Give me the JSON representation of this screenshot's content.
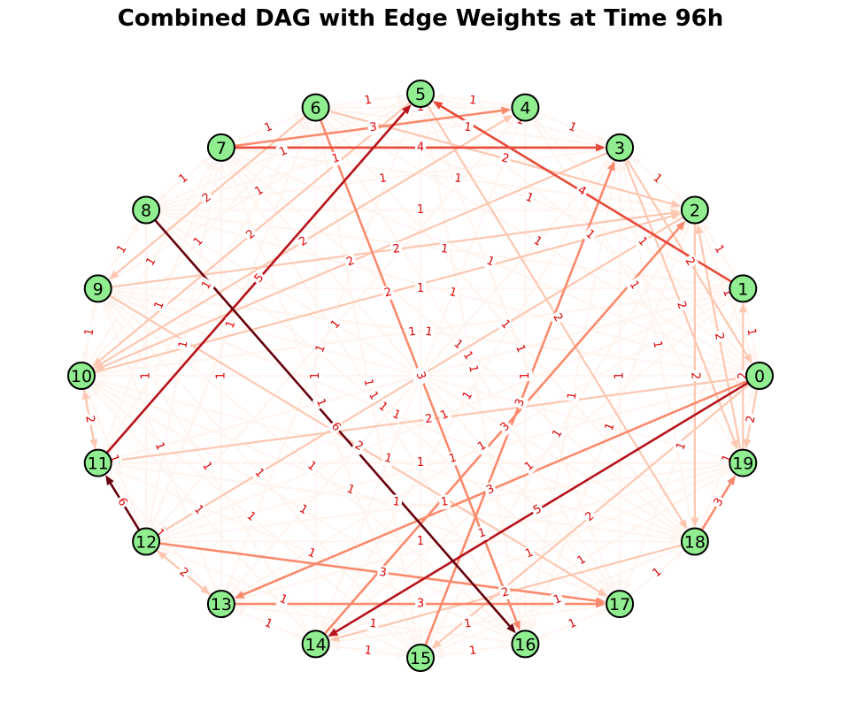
{
  "title": "Combined DAG with Edge Weights at Time 96h",
  "colors": {
    "node_fill": "#90ee90",
    "node_stroke": "#000000",
    "edge_label": "#e00000",
    "edge_colormap": [
      "#fff5f0",
      "#fcbba1",
      "#fb6a4a",
      "#cb181d",
      "#67000d"
    ]
  },
  "nodes": [
    "0",
    "1",
    "2",
    "3",
    "4",
    "5",
    "6",
    "7",
    "8",
    "9",
    "10",
    "11",
    "12",
    "13",
    "14",
    "15",
    "16",
    "17",
    "18",
    "19"
  ],
  "edges": [
    {
      "source": "7",
      "target": "3",
      "weight": 4
    },
    {
      "source": "4",
      "target": "3",
      "weight": 1
    },
    {
      "source": "3",
      "target": "2",
      "weight": 1
    },
    {
      "source": "1",
      "target": "5",
      "weight": 4
    },
    {
      "source": "11",
      "target": "5",
      "weight": 5
    },
    {
      "source": "8",
      "target": "16",
      "weight": 6
    },
    {
      "source": "12",
      "target": "11",
      "weight": 6
    },
    {
      "source": "0",
      "target": "14",
      "weight": 5
    },
    {
      "source": "18",
      "target": "19",
      "weight": 3
    },
    {
      "source": "18",
      "target": "0",
      "weight": 1
    },
    {
      "source": "0",
      "target": "13",
      "weight": 3
    },
    {
      "source": "13",
      "target": "17",
      "weight": 3
    },
    {
      "source": "12",
      "target": "17",
      "weight": 3
    },
    {
      "source": "13",
      "target": "12",
      "weight": 2
    },
    {
      "source": "15",
      "target": "3",
      "weight": 3
    },
    {
      "source": "14",
      "target": "2",
      "weight": 3
    },
    {
      "source": "6",
      "target": "16",
      "weight": 3
    },
    {
      "source": "5",
      "target": "16",
      "weight": 1
    },
    {
      "source": "5",
      "target": "18",
      "weight": 2
    },
    {
      "source": "7",
      "target": "4",
      "weight": 3
    },
    {
      "source": "6",
      "target": "5",
      "weight": 1
    },
    {
      "source": "9",
      "target": "2",
      "weight": 2
    },
    {
      "source": "10",
      "target": "2",
      "weight": 2
    },
    {
      "source": "10",
      "target": "4",
      "weight": 2
    },
    {
      "source": "11",
      "target": "0",
      "weight": 2
    },
    {
      "source": "13",
      "target": "3",
      "weight": 1
    },
    {
      "source": "9",
      "target": "17",
      "weight": 2
    },
    {
      "source": "10",
      "target": "0",
      "weight": 1
    },
    {
      "source": "8",
      "target": "5",
      "weight": 1
    },
    {
      "source": "7",
      "target": "15",
      "weight": 1
    },
    {
      "source": "12",
      "target": "1",
      "weight": 1
    },
    {
      "source": "11",
      "target": "19",
      "weight": 1
    },
    {
      "source": "9",
      "target": "19",
      "weight": 1
    },
    {
      "source": "10",
      "target": "1",
      "weight": 1
    },
    {
      "source": "14",
      "target": "3",
      "weight": 1
    },
    {
      "source": "15",
      "target": "2",
      "weight": 1
    },
    {
      "source": "16",
      "target": "3",
      "weight": 1
    },
    {
      "source": "17",
      "target": "3",
      "weight": 1
    },
    {
      "source": "17",
      "target": "5",
      "weight": 1
    },
    {
      "source": "15",
      "target": "6",
      "weight": 1
    },
    {
      "source": "14",
      "target": "6",
      "weight": 1
    },
    {
      "source": "13",
      "target": "7",
      "weight": 1
    },
    {
      "source": "12",
      "target": "4",
      "weight": 1
    },
    {
      "source": "19",
      "target": "2",
      "weight": 2
    },
    {
      "source": "19",
      "target": "1",
      "weight": 2
    },
    {
      "source": "19",
      "target": "4",
      "weight": 1
    },
    {
      "source": "18",
      "target": "3",
      "weight": 1
    },
    {
      "source": "18",
      "target": "9",
      "weight": 1
    },
    {
      "source": "18",
      "target": "7",
      "weight": 1
    },
    {
      "source": "17",
      "target": "10",
      "weight": 1
    },
    {
      "source": "17",
      "target": "9",
      "weight": 1
    },
    {
      "source": "16",
      "target": "9",
      "weight": 1
    },
    {
      "source": "16",
      "target": "10",
      "weight": 1
    },
    {
      "source": "15",
      "target": "10",
      "weight": 1
    },
    {
      "source": "14",
      "target": "10",
      "weight": 1
    },
    {
      "source": "13",
      "target": "9",
      "weight": 1
    },
    {
      "source": "12",
      "target": "6",
      "weight": 1
    },
    {
      "source": "11",
      "target": "6",
      "weight": 1
    },
    {
      "source": "11",
      "target": "7",
      "weight": 1
    },
    {
      "source": "10",
      "target": "6",
      "weight": 1
    },
    {
      "source": "10",
      "target": "7",
      "weight": 1
    },
    {
      "source": "9",
      "target": "5",
      "weight": 1
    },
    {
      "source": "9",
      "target": "6",
      "weight": 1
    },
    {
      "source": "8",
      "target": "3",
      "weight": 1
    },
    {
      "source": "8",
      "target": "4",
      "weight": 1
    },
    {
      "source": "7",
      "target": "6",
      "weight": 1
    },
    {
      "source": "6",
      "target": "2",
      "weight": 2
    },
    {
      "source": "6",
      "target": "1",
      "weight": 1
    },
    {
      "source": "5",
      "target": "1",
      "weight": 1
    },
    {
      "source": "4",
      "target": "0",
      "weight": 1
    },
    {
      "source": "3",
      "target": "0",
      "weight": 2
    },
    {
      "source": "3",
      "target": "19",
      "weight": 2
    },
    {
      "source": "2",
      "target": "0",
      "weight": 1
    },
    {
      "source": "2",
      "target": "18",
      "weight": 2
    },
    {
      "source": "1",
      "target": "0",
      "weight": 1
    },
    {
      "source": "1",
      "target": "17",
      "weight": 1
    },
    {
      "source": "0",
      "target": "15",
      "weight": 2
    },
    {
      "source": "0",
      "target": "12",
      "weight": 1
    },
    {
      "source": "19",
      "target": "15",
      "weight": 1
    },
    {
      "source": "19",
      "target": "13",
      "weight": 1
    },
    {
      "source": "18",
      "target": "14",
      "weight": 2
    },
    {
      "source": "17",
      "target": "16",
      "weight": 1
    },
    {
      "source": "16",
      "target": "15",
      "weight": 1
    },
    {
      "source": "15",
      "target": "14",
      "weight": 1
    },
    {
      "source": "14",
      "target": "13",
      "weight": 1
    },
    {
      "source": "13",
      "target": "11",
      "weight": 1
    },
    {
      "source": "12",
      "target": "10",
      "weight": 1
    },
    {
      "source": "11",
      "target": "10",
      "weight": 2
    },
    {
      "source": "10",
      "target": "9",
      "weight": 1
    },
    {
      "source": "9",
      "target": "8",
      "weight": 1
    },
    {
      "source": "8",
      "target": "7",
      "weight": 1
    },
    {
      "source": "1",
      "target": "2",
      "weight": 1
    },
    {
      "source": "2",
      "target": "3",
      "weight": 1
    },
    {
      "source": "4",
      "target": "5",
      "weight": 1
    },
    {
      "source": "16",
      "target": "17",
      "weight": 1
    },
    {
      "source": "14",
      "target": "15",
      "weight": 1
    },
    {
      "source": "12",
      "target": "13",
      "weight": 2
    },
    {
      "source": "10",
      "target": "11",
      "weight": 2
    },
    {
      "source": "0",
      "target": "19",
      "weight": 2
    },
    {
      "source": "9",
      "target": "10",
      "weight": 1
    },
    {
      "source": "7",
      "target": "8",
      "weight": 1
    },
    {
      "source": "11",
      "target": "12",
      "weight": 1
    },
    {
      "source": "13",
      "target": "14",
      "weight": 1
    },
    {
      "source": "15",
      "target": "16",
      "weight": 1
    },
    {
      "source": "17",
      "target": "18",
      "weight": 1
    },
    {
      "source": "2",
      "target": "16",
      "weight": 1
    },
    {
      "source": "3",
      "target": "17",
      "weight": 1
    },
    {
      "source": "4",
      "target": "14",
      "weight": 1
    },
    {
      "source": "5",
      "target": "15",
      "weight": 1
    },
    {
      "source": "6",
      "target": "17",
      "weight": 1
    },
    {
      "source": "7",
      "target": "16",
      "weight": 1
    },
    {
      "source": "8",
      "target": "18",
      "weight": 1
    },
    {
      "source": "1",
      "target": "11",
      "weight": 1
    },
    {
      "source": "0",
      "target": "9",
      "weight": 1
    },
    {
      "source": "2",
      "target": "12",
      "weight": 2
    },
    {
      "source": "3",
      "target": "13",
      "weight": 1
    },
    {
      "source": "4",
      "target": "12",
      "weight": 1
    },
    {
      "source": "5",
      "target": "13",
      "weight": 1
    },
    {
      "source": "1",
      "target": "13",
      "weight": 1
    },
    {
      "source": "0",
      "target": "10",
      "weight": 1
    },
    {
      "source": "19",
      "target": "11",
      "weight": 1
    },
    {
      "source": "18",
      "target": "11",
      "weight": 1
    },
    {
      "source": "17",
      "target": "12",
      "weight": 1
    },
    {
      "source": "16",
      "target": "11",
      "weight": 1
    },
    {
      "source": "15",
      "target": "9",
      "weight": 1
    },
    {
      "source": "14",
      "target": "9",
      "weight": 1
    },
    {
      "source": "6",
      "target": "9",
      "weight": 2
    },
    {
      "source": "5",
      "target": "10",
      "weight": 2
    },
    {
      "source": "3",
      "target": "10",
      "weight": 2
    },
    {
      "source": "4",
      "target": "10",
      "weight": 1
    },
    {
      "source": "1",
      "target": "10",
      "weight": 1
    },
    {
      "source": "2",
      "target": "10",
      "weight": 1
    },
    {
      "source": "1",
      "target": "14",
      "weight": 1
    },
    {
      "source": "5",
      "target": "11",
      "weight": 1
    },
    {
      "source": "6",
      "target": "12",
      "weight": 1
    },
    {
      "source": "7",
      "target": "12",
      "weight": 1
    },
    {
      "source": "8",
      "target": "12",
      "weight": 1
    },
    {
      "source": "19",
      "target": "14",
      "weight": 1
    },
    {
      "source": "18",
      "target": "15",
      "weight": 1
    },
    {
      "source": "17",
      "target": "14",
      "weight": 1
    },
    {
      "source": "16",
      "target": "13",
      "weight": 1
    },
    {
      "source": "15",
      "target": "12",
      "weight": 1
    },
    {
      "source": "3",
      "target": "15",
      "weight": 1
    },
    {
      "source": "2",
      "target": "14",
      "weight": 1
    },
    {
      "source": "4",
      "target": "16",
      "weight": 1
    },
    {
      "source": "5",
      "target": "17",
      "weight": 1
    },
    {
      "source": "6",
      "target": "18",
      "weight": 1
    },
    {
      "source": "7",
      "target": "17",
      "weight": 1
    },
    {
      "source": "8",
      "target": "17",
      "weight": 1
    },
    {
      "source": "9",
      "target": "18",
      "weight": 1
    },
    {
      "source": "10",
      "target": "18",
      "weight": 1
    },
    {
      "source": "11",
      "target": "18",
      "weight": 1
    },
    {
      "source": "12",
      "target": "18",
      "weight": 1
    },
    {
      "source": "13",
      "target": "19",
      "weight": 1
    },
    {
      "source": "12",
      "target": "19",
      "weight": 1
    },
    {
      "source": "11",
      "target": "1",
      "weight": 1
    },
    {
      "source": "9",
      "target": "0",
      "weight": 1
    },
    {
      "source": "8",
      "target": "0",
      "weight": 1
    },
    {
      "source": "7",
      "target": "0",
      "weight": 1
    },
    {
      "source": "6",
      "target": "0",
      "weight": 1
    },
    {
      "source": "5",
      "target": "0",
      "weight": 1
    },
    {
      "source": "8",
      "target": "1",
      "weight": 1
    },
    {
      "source": "9",
      "target": "1",
      "weight": 1
    },
    {
      "source": "7",
      "target": "2",
      "weight": 1
    },
    {
      "source": "8",
      "target": "2",
      "weight": 1
    },
    {
      "source": "6",
      "target": "3",
      "weight": 1
    },
    {
      "source": "5",
      "target": "3",
      "weight": 1
    },
    {
      "source": "6",
      "target": "4",
      "weight": 1
    },
    {
      "source": "5",
      "target": "4",
      "weight": 1
    }
  ]
}
